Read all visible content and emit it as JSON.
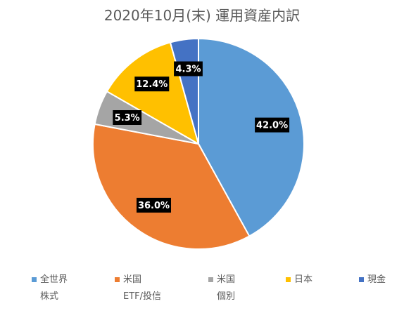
{
  "chart_data": {
    "type": "pie",
    "title": "2020年10月(末) 運用資産内訳",
    "categories": [
      "全世界株式",
      "米国ETF/投信",
      "米国個別",
      "日本",
      "現金"
    ],
    "legend_lines": [
      [
        "全世界",
        "株式"
      ],
      [
        "米国",
        "ETF/投信"
      ],
      [
        "米国",
        "個別"
      ],
      [
        "日本"
      ],
      [
        "現金"
      ]
    ],
    "values": [
      42.0,
      36.0,
      5.3,
      12.4,
      4.3
    ],
    "data_labels": [
      "42.0%",
      "36.0%",
      "5.3%",
      "12.4%",
      "4.3%"
    ],
    "colors": [
      "#5B9BD5",
      "#ED7D31",
      "#A5A5A5",
      "#FFC000",
      "#4472C4"
    ],
    "start_angle": "12 o'clock",
    "direction": "clockwise",
    "legend_position": "bottom"
  }
}
